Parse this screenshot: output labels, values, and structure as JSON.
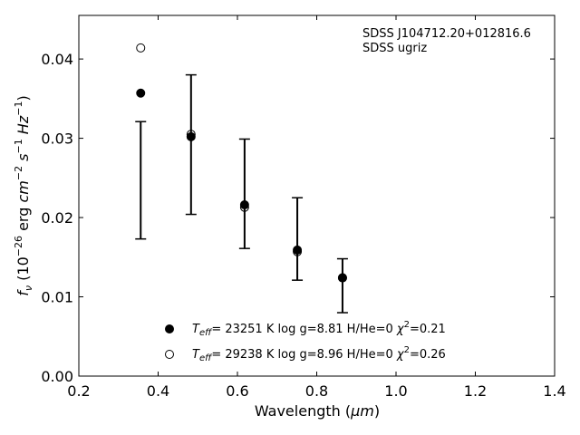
{
  "chart_data": {
    "type": "scatter",
    "title": "",
    "annotation": {
      "line1": "SDSS J104712.20+012816.6",
      "line2": "SDSS ugriz"
    },
    "xlabel": "Wavelength (μm)",
    "ylabel": "f_ν (10^-26 erg cm^-2 s^-1 Hz^-1)",
    "xlim": [
      0.2,
      1.4
    ],
    "ylim": [
      0.0,
      0.0455
    ],
    "xticks": [
      "0.2",
      "0.4",
      "0.6",
      "0.8",
      "1.0",
      "1.2",
      "1.4"
    ],
    "yticks": [
      "0.00",
      "0.01",
      "0.02",
      "0.03",
      "0.04"
    ],
    "grid": false,
    "legend_position": "bottom-center",
    "observed": {
      "x": [
        0.356,
        0.483,
        0.618,
        0.751,
        0.865
      ],
      "y": [
        0.0247,
        0.0292,
        0.023,
        0.0173,
        0.0114
      ],
      "yerr": [
        0.0074,
        0.0088,
        0.0069,
        0.0052,
        0.0034
      ]
    },
    "series": [
      {
        "name": "T_eff= 23251 K  log g=8.81  H/He=0  χ²=0.21",
        "marker": "filled",
        "x": [
          0.356,
          0.483,
          0.618,
          0.751,
          0.865
        ],
        "y": [
          0.0357,
          0.0302,
          0.0216,
          0.0159,
          0.0124
        ]
      },
      {
        "name": "T_eff= 29238 K  log g=8.96  H/He=0  χ²=0.26",
        "marker": "open",
        "x": [
          0.356,
          0.483,
          0.618,
          0.751,
          0.865
        ],
        "y": [
          0.0414,
          0.0305,
          0.0213,
          0.0157,
          0.0124
        ]
      }
    ],
    "legend": {
      "teff_prefix": "T",
      "teff_sub": "eff",
      "entries": [
        {
          "teff_rest": "= 23251 K  log g=8.81  H/He=0  ",
          "chi": "χ",
          "chi_sup": "2",
          "chi_rest": "=0.21"
        },
        {
          "teff_rest": "= 29238 K  log g=8.96  H/He=0  ",
          "chi": "χ",
          "chi_sup": "2",
          "chi_rest": "=0.26"
        }
      ]
    },
    "xlabel_parts": {
      "main": "Wavelength (",
      "unit": "μm",
      "close": ")"
    },
    "ylabel_parts": {
      "f": "f",
      "nu": "ν",
      "open": " (10",
      "exp1": "−26",
      "erg": " erg ",
      "cm": "cm",
      "exp2": "−2",
      "s": " s",
      "exp3": "−1",
      "hz": " Hz",
      "exp4": "−1",
      "close": ")"
    }
  }
}
